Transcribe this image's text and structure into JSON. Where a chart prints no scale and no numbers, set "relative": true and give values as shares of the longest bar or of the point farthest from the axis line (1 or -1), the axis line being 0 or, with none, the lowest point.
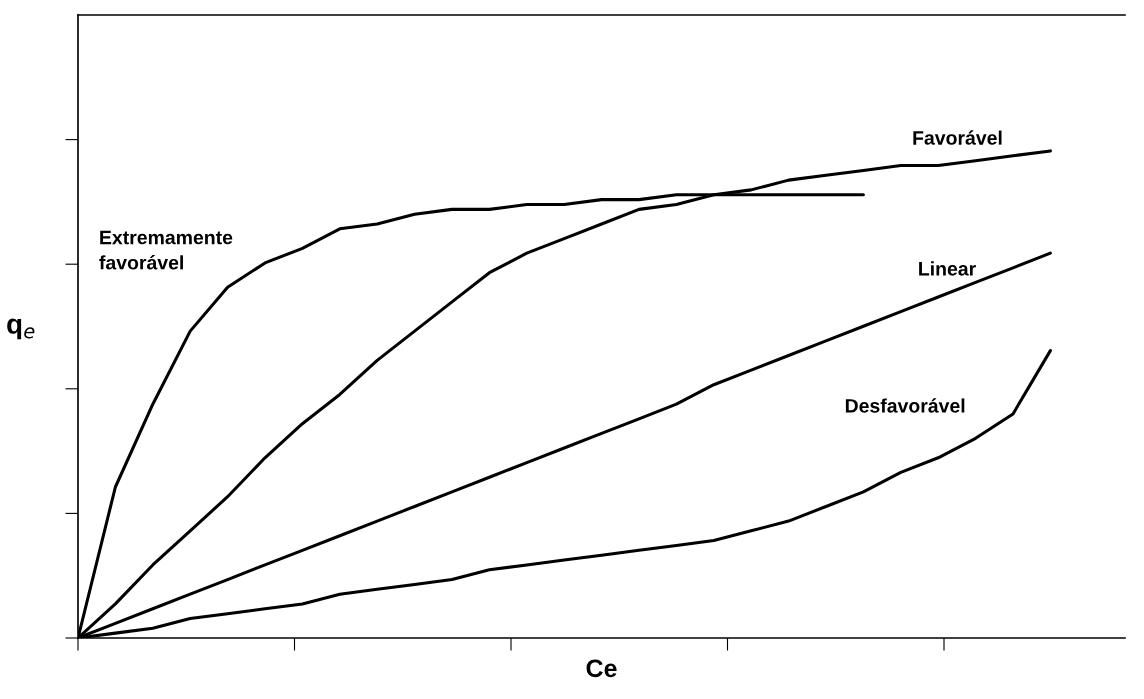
{
  "chart_data": {
    "type": "line",
    "relative": true,
    "xlabel": "Ce",
    "ylabel": "q$_{e}$",
    "categories": [
      null,
      null,
      null,
      null,
      null,
      null,
      null,
      null,
      null,
      null,
      null,
      null,
      null,
      null,
      null,
      null,
      null,
      null,
      null,
      null,
      null,
      null,
      null,
      null,
      null,
      null,
      null
    ],
    "series": [
      {
        "name": "Extremamente\nfavorável",
        "color": "#000000",
        "values": [
          0,
          0.31,
          0.48,
          0.63,
          0.72,
          0.77,
          0.8,
          0.84,
          0.85,
          0.87,
          0.88,
          0.88,
          0.89,
          0.89,
          0.9,
          0.9,
          0.91,
          0.91,
          0.91,
          0.91,
          0.91,
          0.91,
          null,
          null,
          null,
          null,
          null
        ]
      },
      {
        "name": "Favorável",
        "color": "#000000",
        "values": [
          0,
          0.07,
          0.15,
          0.22,
          0.29,
          0.37,
          0.44,
          0.5,
          0.57,
          0.63,
          0.69,
          0.75,
          0.79,
          0.82,
          0.85,
          0.88,
          0.89,
          0.91,
          0.92,
          0.94,
          0.95,
          0.96,
          0.97,
          0.97,
          0.98,
          0.99,
          1
        ]
      },
      {
        "name": "Linear",
        "color": "#000000",
        "values": [
          0,
          0.03,
          0.06,
          0.09,
          0.12,
          0.15,
          0.18,
          0.21,
          0.24,
          0.27,
          0.3,
          0.33,
          0.36,
          0.39,
          0.42,
          0.45,
          0.48,
          0.52,
          0.55,
          0.58,
          0.61,
          0.64,
          0.67,
          0.7,
          0.73,
          0.76,
          0.79
        ]
      },
      {
        "name": "Desfavorável",
        "color": "#000000",
        "values": [
          0,
          0.01,
          0.02,
          0.04,
          0.05,
          0.06,
          0.07,
          0.09,
          0.1,
          0.11,
          0.12,
          0.14,
          0.15,
          0.16,
          0.17,
          0.18,
          0.19,
          0.2,
          0.22,
          0.24,
          0.27,
          0.3,
          0.34,
          0.37,
          0.41,
          0.46,
          0.59
        ]
      }
    ],
    "grid": false,
    "legend": false,
    "marker": "none",
    "line_style": "solid",
    "tick_labels": false
  }
}
